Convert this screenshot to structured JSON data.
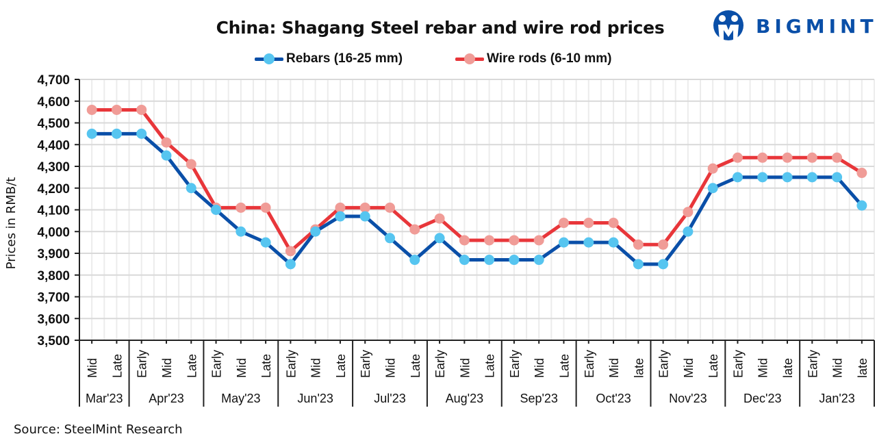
{
  "chart_data": {
    "type": "line",
    "title": "China: Shagang Steel rebar and wire rod prices",
    "xlabel": "",
    "ylabel": "Prices in RMB/t",
    "ylim": [
      3500,
      4700
    ],
    "yticks": [
      "3,500",
      "3,600",
      "3,700",
      "3,800",
      "3,900",
      "4,000",
      "4,100",
      "4,200",
      "4,300",
      "4,400",
      "4,500",
      "4,600",
      "4,700"
    ],
    "ytick_values": [
      3500,
      3600,
      3700,
      3800,
      3900,
      4000,
      4100,
      4200,
      4300,
      4400,
      4500,
      4600,
      4700
    ],
    "grid": true,
    "legend_position": "top-center",
    "categories": [
      "Mid",
      "Late",
      "Early",
      "Mid",
      "Late",
      "Early",
      "Mid",
      "Late",
      "Early",
      "Mid",
      "Late",
      "Early",
      "Mid",
      "Late",
      "Early",
      "Mid",
      "Late",
      "Early",
      "Mid",
      "Late",
      "Early",
      "Mid",
      "late",
      "Early",
      "Mid",
      "Late",
      "Early",
      "Mid",
      "late",
      "Early",
      "Mid",
      "late"
    ],
    "groups": [
      {
        "label": "Mar'23",
        "count": 2
      },
      {
        "label": "Apr'23",
        "count": 3
      },
      {
        "label": "May'23",
        "count": 3
      },
      {
        "label": "Jun'23",
        "count": 3
      },
      {
        "label": "Jul'23",
        "count": 3
      },
      {
        "label": "Aug'23",
        "count": 3
      },
      {
        "label": "Sep'23",
        "count": 3
      },
      {
        "label": "Oct'23",
        "count": 3
      },
      {
        "label": "Nov'23",
        "count": 3
      },
      {
        "label": "Dec'23",
        "count": 3
      },
      {
        "label": "Jan'23",
        "count": 3
      }
    ],
    "series": [
      {
        "name": "Rebars (16-25 mm)",
        "line_color": "#0a4fa8",
        "marker_color": "#56c5f0",
        "values": [
          4450,
          4450,
          4450,
          4350,
          4200,
          4100,
          4000,
          3950,
          3850,
          4000,
          4070,
          4070,
          3970,
          3870,
          3970,
          3870,
          3870,
          3870,
          3870,
          3950,
          3950,
          3950,
          3850,
          3850,
          4000,
          4200,
          4250,
          4250,
          4250,
          4250,
          4250,
          4120
        ]
      },
      {
        "name": "Wire rods (6-10 mm)",
        "line_color": "#e8363a",
        "marker_color": "#f09c97",
        "values": [
          4560,
          4560,
          4560,
          4410,
          4310,
          4110,
          4110,
          4110,
          3910,
          4010,
          4110,
          4110,
          4110,
          4010,
          4060,
          3960,
          3960,
          3960,
          3960,
          4040,
          4040,
          4040,
          3940,
          3940,
          4090,
          4290,
          4340,
          4340,
          4340,
          4340,
          4340,
          4270
        ]
      }
    ]
  },
  "source": "Source: SteelMint Research",
  "logo": {
    "text": "BIGMINT",
    "color": "#0a4fa8"
  }
}
